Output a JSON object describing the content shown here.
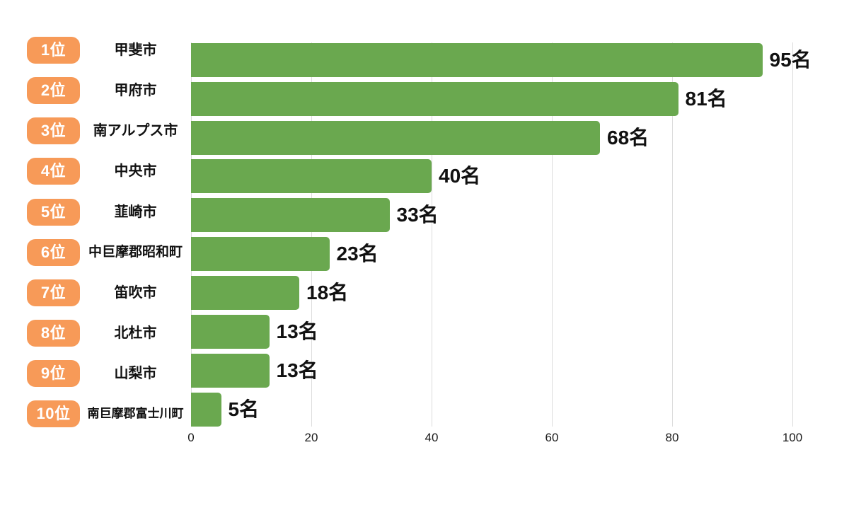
{
  "chart_data": {
    "type": "bar",
    "orientation": "horizontal",
    "title": "",
    "xlabel": "",
    "ylabel": "",
    "xlim": [
      0,
      100
    ],
    "x_ticks": [
      "0",
      "20",
      "40",
      "60",
      "80",
      "100"
    ],
    "grid": "vertical-light-gray",
    "unit_suffix": "名",
    "colors": {
      "bar": "#6AA84F",
      "rank_badge": "#F79A58",
      "badge_text": "#FFFFFF",
      "gridline": "#DCDCDC",
      "text": "#111111"
    },
    "rows": [
      {
        "rank_label": "1位",
        "city": "甲斐市",
        "value": 95,
        "value_label": "95名"
      },
      {
        "rank_label": "2位",
        "city": "甲府市",
        "value": 81,
        "value_label": "81名"
      },
      {
        "rank_label": "3位",
        "city": "南アルプス市",
        "value": 68,
        "value_label": "68名"
      },
      {
        "rank_label": "4位",
        "city": "中央市",
        "value": 40,
        "value_label": "40名"
      },
      {
        "rank_label": "5位",
        "city": "韮崎市",
        "value": 33,
        "value_label": "33名"
      },
      {
        "rank_label": "6位",
        "city": "中巨摩郡昭和町",
        "value": 23,
        "value_label": "23名"
      },
      {
        "rank_label": "7位",
        "city": "笛吹市",
        "value": 18,
        "value_label": "18名"
      },
      {
        "rank_label": "8位",
        "city": "北杜市",
        "value": 13,
        "value_label": "13名"
      },
      {
        "rank_label": "9位",
        "city": "山梨市",
        "value": 13,
        "value_label": "13名"
      },
      {
        "rank_label": "10位",
        "city": "南巨摩郡富士川町",
        "value": 5,
        "value_label": "5名"
      }
    ]
  }
}
